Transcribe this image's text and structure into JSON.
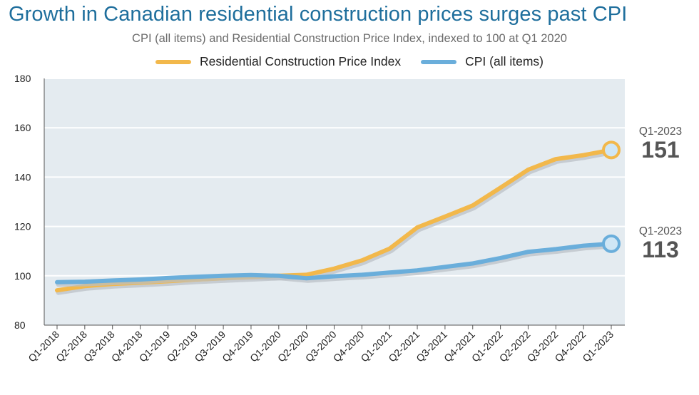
{
  "chart_data": {
    "type": "line",
    "title": "Growth in Canadian residential construction prices surges past CPI",
    "subtitle": "CPI (all items) and Residential Construction Price Index, indexed to 100 at Q1 2020",
    "categories": [
      "Q1-2018",
      "Q2-2018",
      "Q3-2018",
      "Q4-2018",
      "Q1-2019",
      "Q2-2019",
      "Q3-2019",
      "Q4-2019",
      "Q1-2020",
      "Q2-2020",
      "Q3-2020",
      "Q4-2020",
      "Q1-2021",
      "Q2-2021",
      "Q3-2021",
      "Q4-2021",
      "Q1-2022",
      "Q2-2022",
      "Q3-2022",
      "Q4-2022",
      "Q1-2023"
    ],
    "series": [
      {
        "name": "Residential Construction Price Index",
        "color": "#f2b84b",
        "values": [
          94.1,
          95.8,
          96.7,
          97.2,
          97.8,
          98.5,
          99.0,
          99.5,
          100.0,
          100.4,
          102.9,
          106.2,
          111.0,
          119.6,
          124.0,
          128.5,
          135.7,
          143.0,
          147.3,
          148.9,
          151.0
        ]
      },
      {
        "name": "CPI (all items)",
        "color": "#6aaedb",
        "values": [
          97.4,
          97.6,
          98.1,
          98.5,
          99.1,
          99.6,
          100.0,
          100.3,
          100.0,
          99.0,
          99.8,
          100.4,
          101.3,
          102.2,
          103.6,
          105.0,
          107.2,
          109.7,
          110.8,
          112.2,
          113.0
        ]
      }
    ],
    "ylim": [
      80,
      180
    ],
    "yticks": [
      80,
      100,
      120,
      140,
      160,
      180
    ],
    "grid": true,
    "legend": "top-center",
    "end_labels": [
      {
        "period": "Q1-2023",
        "value": "151"
      },
      {
        "period": "Q1-2023",
        "value": "113"
      }
    ]
  },
  "colors": {
    "title": "#1e6e9c",
    "plot_bg": "#e4ebf0",
    "grid": "#ffffff",
    "marker_fill": "#cfe6f5"
  }
}
